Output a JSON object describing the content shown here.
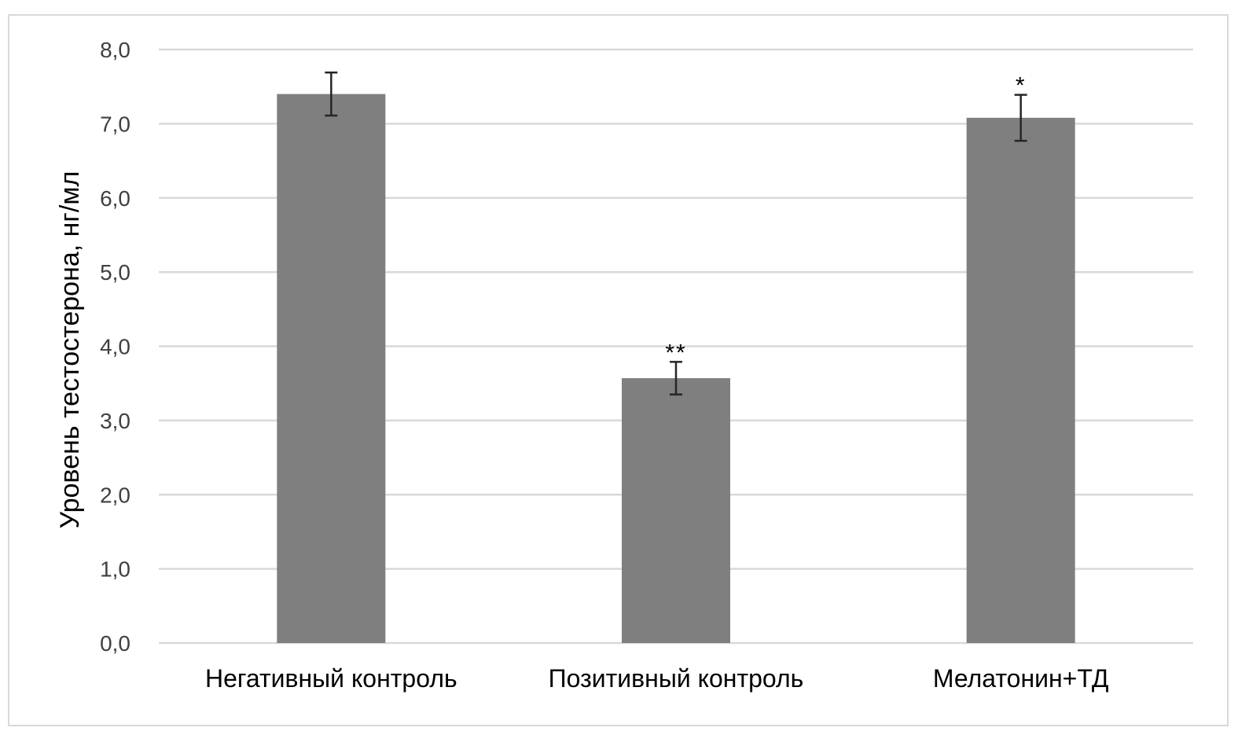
{
  "chart_data": {
    "type": "bar",
    "ylabel": "Уровень тестостерона, нг/мл",
    "categories": [
      "Негативный контроль",
      "Позитивный контроль",
      "Мелатонин+ТД"
    ],
    "values": [
      7.4,
      3.57,
      7.08
    ],
    "errors": [
      0.29,
      0.22,
      0.31
    ],
    "annotations": [
      "",
      "**",
      "*"
    ],
    "ylim": [
      0,
      8
    ],
    "yticks": [
      "0,0",
      "1,0",
      "2,0",
      "3,0",
      "4,0",
      "5,0",
      "6,0",
      "7,0",
      "8,0"
    ],
    "grid": true,
    "bar_color": "#7f7f7f",
    "grid_color": "#d9d9d9",
    "errorbar_color": "#262626"
  }
}
